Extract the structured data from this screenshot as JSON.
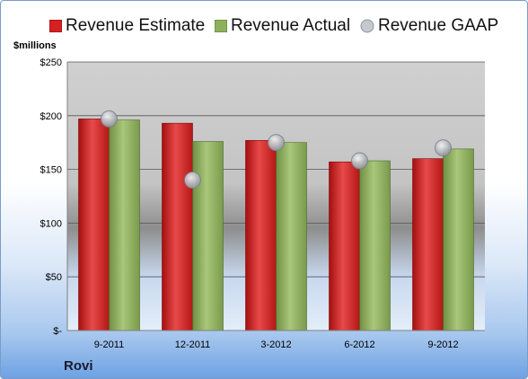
{
  "company": "Rovi",
  "chart_data": {
    "type": "bar",
    "ylabel": "$millions",
    "ylim": [
      0,
      250
    ],
    "yticks": [
      0,
      50,
      100,
      150,
      200,
      250
    ],
    "ytick_labels": [
      "$-",
      "$50",
      "$100",
      "$150",
      "$200",
      "$250"
    ],
    "categories": [
      "9-2011",
      "12-2011",
      "3-2012",
      "6-2012",
      "9-2012"
    ],
    "series": [
      {
        "name": "Revenue Estimate",
        "type": "bar",
        "color": "#d42020",
        "values": [
          197,
          193,
          177,
          157,
          160
        ]
      },
      {
        "name": "Revenue Actual",
        "type": "bar",
        "color": "#8db05c",
        "values": [
          196,
          176,
          175,
          158,
          169
        ]
      },
      {
        "name": "Revenue GAAP",
        "type": "scatter",
        "color": "#b4b8bf",
        "values": [
          197,
          140,
          175,
          158,
          170
        ]
      }
    ],
    "grid": true,
    "legend_position": "top"
  }
}
